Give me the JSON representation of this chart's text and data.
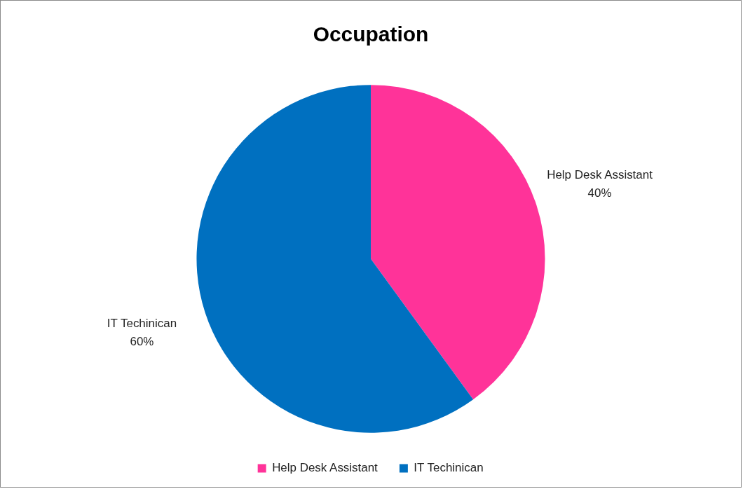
{
  "chart_data": {
    "type": "pie",
    "title": "Occupation",
    "categories": [
      "Help Desk Assistant",
      "IT Techinican"
    ],
    "values": [
      40,
      60
    ],
    "colors": [
      "#ff3399",
      "#0070c0"
    ],
    "value_labels": [
      "40%",
      "60%"
    ],
    "legend": "bottom"
  }
}
